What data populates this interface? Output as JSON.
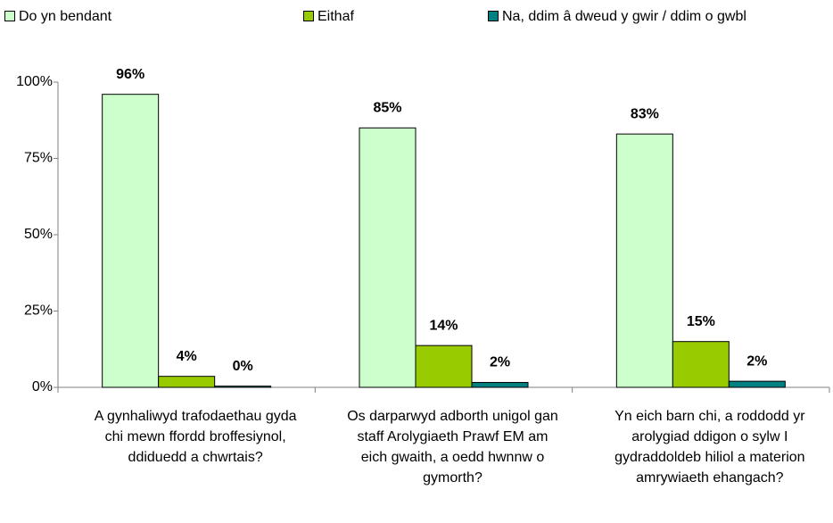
{
  "chart_data": {
    "type": "bar",
    "categories": [
      "A gynhaliwyd trafodaethau gyda chi mewn ffordd broffesiynol, ddiduedd a chwrtais?",
      "Os darparwyd adborth unigol gan staff Arolygiaeth Prawf EM am eich gwaith, a oedd hwnnw o gymorth?",
      "Yn eich barn chi, a roddodd yr arolygiad ddigon o sylw I gydraddoldeb hiliol a materion amrywiaeth ehangach?"
    ],
    "series": [
      {
        "name": "Do yn bendant",
        "color": "#ccffcc",
        "values": [
          96,
          85,
          83
        ],
        "value_labels": [
          "96%",
          "85%",
          "83%"
        ]
      },
      {
        "name": "Eithaf",
        "color": "#99cc00",
        "values": [
          3.6,
          13.7,
          15
        ],
        "value_labels": [
          "4%",
          "14%",
          "15%"
        ]
      },
      {
        "name": "Na, ddim â dweud y gwir / ddim o gwbl",
        "color": "#008080",
        "values": [
          0.4,
          1.6,
          2
        ],
        "value_labels": [
          "0%",
          "2%",
          "2%"
        ]
      }
    ],
    "ylim": [
      0,
      100
    ],
    "yticks": [
      {
        "value": 0,
        "label": "0%"
      },
      {
        "value": 25,
        "label": "25%"
      },
      {
        "value": 50,
        "label": "50%"
      },
      {
        "value": 75,
        "label": "75%"
      },
      {
        "value": 100,
        "label": "100%"
      }
    ],
    "legend": "top"
  }
}
